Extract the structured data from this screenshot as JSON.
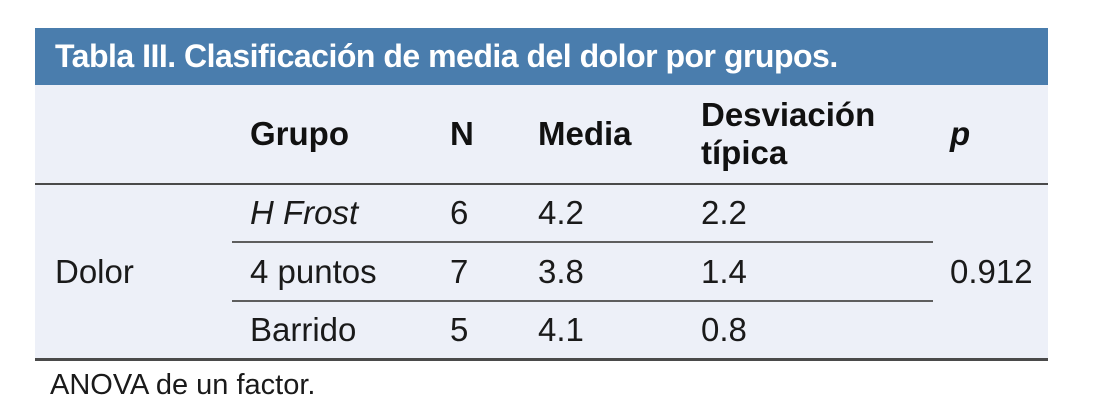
{
  "title": "Tabla III. Clasificación de media del dolor por grupos.",
  "table": {
    "columns": {
      "group": "Grupo",
      "n": "N",
      "media": "Media",
      "sd": "Desviación típica",
      "p": "p"
    },
    "row_label": "Dolor",
    "rows": [
      {
        "group": "H Frost",
        "n": "6",
        "media": "4.2",
        "sd": "2.2"
      },
      {
        "group": "4 puntos",
        "n": "7",
        "media": "3.8",
        "sd": "1.4"
      },
      {
        "group": "Barrido",
        "n": "5",
        "media": "4.1",
        "sd": "0.8"
      }
    ],
    "p_value": "0.912"
  },
  "footnote": "ANOVA de un factor.",
  "colors": {
    "header_bg": "#4A7DAD",
    "table_bg": "#EDF0F8",
    "border_dark": "#4a4a4a",
    "border_light": "#5e5e5e",
    "title_text": "#ffffff"
  },
  "chart_data": {
    "type": "table",
    "title": "Tabla III. Clasificación de media del dolor por grupos.",
    "row_group": "Dolor",
    "columns": [
      "Grupo",
      "N",
      "Media",
      "Desviación típica",
      "p"
    ],
    "rows": [
      [
        "H Frost",
        6,
        4.2,
        2.2
      ],
      [
        "4 puntos",
        7,
        3.8,
        1.4
      ],
      [
        "Barrido",
        5,
        4.1,
        0.8
      ]
    ],
    "p_value": 0.912,
    "note": "ANOVA de un factor."
  }
}
